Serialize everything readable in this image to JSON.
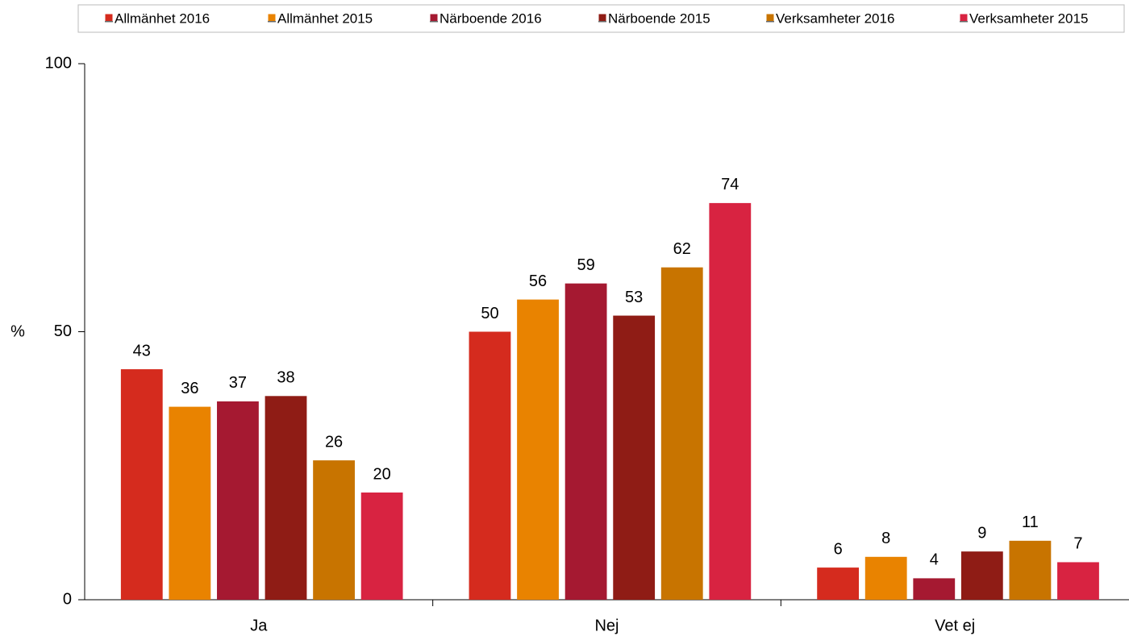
{
  "chart_data": {
    "type": "bar",
    "y_label": "%",
    "categories": [
      "Ja",
      "Nej",
      "Vet ej"
    ],
    "series": [
      {
        "name": "Allmänhet 2016",
        "color": "#d52b1e",
        "values": [
          43,
          50,
          6
        ]
      },
      {
        "name": "Allmänhet 2015",
        "color": "#e98300",
        "values": [
          36,
          56,
          8
        ]
      },
      {
        "name": "Närboende 2016",
        "color": "#a51931",
        "values": [
          37,
          59,
          4
        ]
      },
      {
        "name": "Närboende 2015",
        "color": "#8f1c15",
        "values": [
          38,
          53,
          9
        ]
      },
      {
        "name": "Verksamheter 2016",
        "color": "#c87400",
        "values": [
          26,
          62,
          11
        ]
      },
      {
        "name": "Verksamheter 2015",
        "color": "#d82341",
        "values": [
          20,
          74,
          7
        ]
      }
    ],
    "ylim": [
      0,
      100
    ],
    "yticks": [
      0,
      50,
      100
    ],
    "grid": false,
    "legend": "top"
  }
}
